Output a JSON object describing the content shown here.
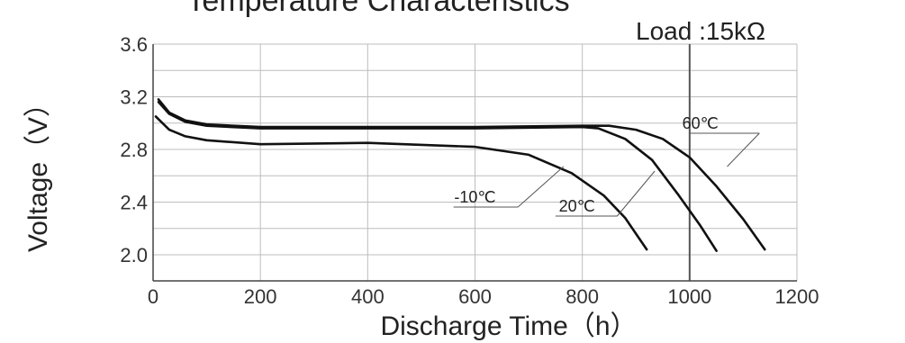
{
  "chart_data": {
    "type": "line",
    "title": "Temperature Characteristics",
    "annotation": "Load :15kΩ",
    "xlabel": "Discharge Time（h）",
    "ylabel": "Voltage（V）",
    "xlim": [
      0,
      1200
    ],
    "ylim": [
      2.0,
      3.6
    ],
    "xticks": [
      0,
      200,
      400,
      600,
      800,
      1000,
      1200
    ],
    "yticks": [
      2.0,
      2.4,
      2.8,
      3.2,
      3.6
    ],
    "xtick_labels": [
      "0",
      "200",
      "400",
      "600",
      "800",
      "1000",
      "1200"
    ],
    "ytick_labels": [
      "2.0",
      "2.4",
      "2.8",
      "3.2",
      "3.6"
    ],
    "grid": true,
    "series": [
      {
        "name": "60℃",
        "x": [
          10,
          30,
          60,
          100,
          200,
          400,
          600,
          800,
          850,
          900,
          950,
          1000,
          1050,
          1100,
          1140
        ],
        "y": [
          3.18,
          3.08,
          3.02,
          2.99,
          2.97,
          2.97,
          2.97,
          2.98,
          2.98,
          2.95,
          2.88,
          2.74,
          2.52,
          2.27,
          2.04
        ]
      },
      {
        "name": "20℃",
        "x": [
          10,
          30,
          60,
          100,
          200,
          400,
          600,
          800,
          830,
          880,
          930,
          980,
          1020,
          1050
        ],
        "y": [
          3.16,
          3.07,
          3.01,
          2.98,
          2.96,
          2.96,
          2.96,
          2.97,
          2.96,
          2.88,
          2.72,
          2.45,
          2.22,
          2.03
        ]
      },
      {
        "name": "-10℃",
        "x": [
          5,
          30,
          60,
          100,
          200,
          400,
          600,
          700,
          780,
          840,
          880,
          910,
          920
        ],
        "y": [
          3.05,
          2.95,
          2.9,
          2.87,
          2.84,
          2.85,
          2.82,
          2.76,
          2.62,
          2.45,
          2.28,
          2.1,
          2.04
        ]
      }
    ]
  }
}
